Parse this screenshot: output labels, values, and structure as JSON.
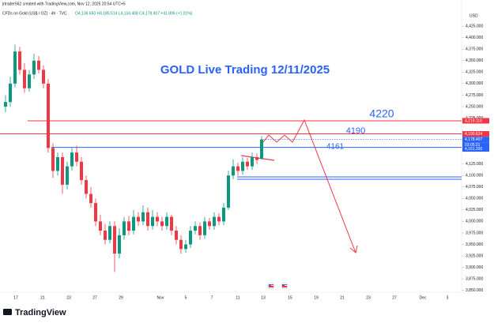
{
  "chart_data": {
    "type": "candlestick",
    "caption": "jrtrader562 created with TradingView.com, Nov 12, 2025 20:54 UTC+5",
    "subtitle": "CFDs on Gold (US$ / OZ) · 4h · TVC",
    "ohlc_text": "O4,136.650 H4,185.514 L4,134.408 C4,178.407 +41.806 (+1.01%)",
    "currency": "USD",
    "title": "GOLD Live Trading 12/11/2025",
    "annotations": [
      "4220",
      "4190",
      "4161"
    ],
    "brand": "TradingView",
    "countdown": "03:05:21",
    "up_color": "#089981",
    "down_color": "#f23645",
    "ylim": [
      3846,
      4458
    ],
    "yticks": [
      {
        "value": 3850,
        "label": "3,850.000"
      },
      {
        "value": 3875,
        "label": "3,875.000"
      },
      {
        "value": 3900,
        "label": "3,900.000"
      },
      {
        "value": 3925,
        "label": "3,925.000"
      },
      {
        "value": 3950,
        "label": "3,950.000"
      },
      {
        "value": 3975,
        "label": "3,975.000"
      },
      {
        "value": 4000,
        "label": "4,000.000"
      },
      {
        "value": 4025,
        "label": "4,025.000"
      },
      {
        "value": 4050,
        "label": "4,050.000"
      },
      {
        "value": 4075,
        "label": "4,075.000"
      },
      {
        "value": 4100,
        "label": "4,100.000"
      },
      {
        "value": 4125,
        "label": "4,125.000"
      },
      {
        "value": 4225,
        "label": "4,225.000"
      },
      {
        "value": 4250,
        "label": "4,250.000"
      },
      {
        "value": 4275,
        "label": "4,275.000"
      },
      {
        "value": 4300,
        "label": "4,300.000"
      },
      {
        "value": 4325,
        "label": "4,325.000"
      },
      {
        "value": 4350,
        "label": "4,350.000"
      },
      {
        "value": 4375,
        "label": "4,375.000"
      },
      {
        "value": 4400,
        "label": "4,400.000"
      },
      {
        "value": 4425,
        "label": "4,425.000"
      }
    ],
    "x_labels": [
      "17",
      "21",
      "23",
      "27",
      "29",
      "Nov",
      "5",
      "7",
      "11",
      "13",
      "15",
      "19",
      "21",
      "23",
      "27",
      "Dec",
      "3"
    ],
    "price_lines": [
      {
        "value": 4219.118,
        "label": "4,219.118",
        "color": "#f23645"
      },
      {
        "value": 4190.624,
        "label": "4,190.624",
        "color": "#f23645"
      },
      {
        "value": 4178.407,
        "label": "4,178.407",
        "color": "#2962ff"
      },
      {
        "value": 4161.33,
        "label": "4,161.330",
        "color": "#2962ff"
      }
    ],
    "open": [
      4250,
      4260,
      4300,
      4370,
      4330,
      4290,
      4320,
      4350,
      4330,
      4300,
      4160,
      4110,
      4140,
      4080,
      4120,
      4150,
      4130,
      4090,
      4060,
      4040,
      4000,
      3980,
      3960,
      3990,
      3930,
      3970,
      4000,
      3980,
      4010,
      4000,
      4020,
      3990,
      4010,
      4000,
      3990,
      4010,
      3980,
      3960,
      3940,
      3950,
      3980,
      3990,
      3970,
      4000,
      3990,
      4010,
      4000,
      4030,
      4100,
      4120,
      4110,
      4130,
      4120,
      4140,
      4136.65
    ],
    "high": [
      4275,
      4315,
      4385,
      4380,
      4345,
      4330,
      4365,
      4360,
      4340,
      4310,
      4170,
      4150,
      4150,
      4130,
      4160,
      4165,
      4140,
      4100,
      4075,
      4050,
      4015,
      3995,
      4000,
      4000,
      3985,
      4010,
      4012,
      4025,
      4020,
      4035,
      4030,
      4025,
      4020,
      4010,
      4020,
      4015,
      3990,
      3970,
      3960,
      3990,
      4000,
      3998,
      4010,
      4008,
      4020,
      4018,
      4040,
      4110,
      4135,
      4128,
      4140,
      4138,
      4150,
      4148,
      4185.514
    ],
    "low": [
      4238,
      4250,
      4292,
      4320,
      4280,
      4282,
      4310,
      4322,
      4290,
      4150,
      4095,
      4100,
      4060,
      4070,
      4110,
      4120,
      4080,
      4050,
      4030,
      3990,
      3970,
      3950,
      3952,
      3890,
      3920,
      3960,
      3970,
      3972,
      3990,
      3992,
      3980,
      3982,
      3990,
      3980,
      3982,
      3970,
      3950,
      3930,
      3932,
      3942,
      3972,
      3960,
      3962,
      3982,
      3982,
      3992,
      3992,
      4025,
      4092,
      4100,
      4102,
      4112,
      4112,
      4125,
      4134.408
    ],
    "close": [
      4260,
      4300,
      4370,
      4330,
      4290,
      4320,
      4350,
      4330,
      4300,
      4160,
      4110,
      4140,
      4080,
      4120,
      4150,
      4130,
      4090,
      4060,
      4040,
      4000,
      3980,
      3960,
      3990,
      3930,
      3970,
      4000,
      3980,
      4010,
      4000,
      4020,
      3990,
      4010,
      4000,
      3990,
      4010,
      3980,
      3960,
      3940,
      3950,
      3980,
      3990,
      3970,
      4000,
      3990,
      4010,
      4000,
      4030,
      4100,
      4120,
      4110,
      4130,
      4120,
      4140,
      4134,
      4178.407
    ]
  }
}
